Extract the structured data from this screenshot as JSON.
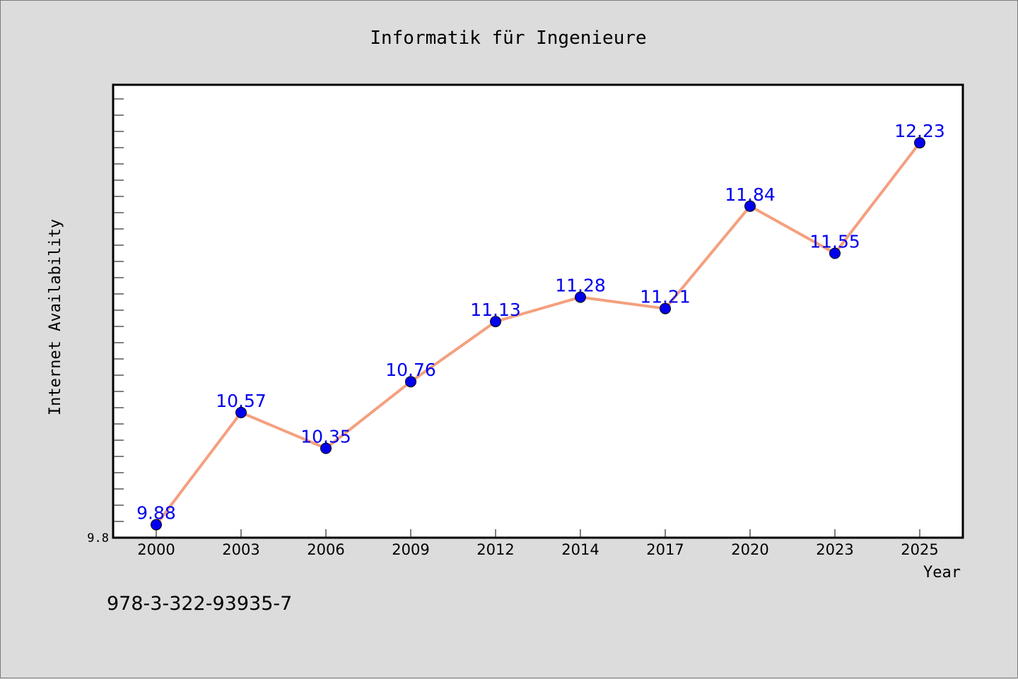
{
  "chart_data": {
    "type": "line",
    "title": "Informatik für Ingenieure",
    "xlabel": "Year",
    "ylabel": "Internet Availability",
    "categories": [
      "2000",
      "2003",
      "2006",
      "2009",
      "2012",
      "2014",
      "2017",
      "2020",
      "2023",
      "2025"
    ],
    "series": [
      {
        "values": [
          9.88,
          10.57,
          10.35,
          10.76,
          11.13,
          11.28,
          11.21,
          11.84,
          11.55,
          12.23
        ],
        "labels": [
          "9.88",
          "10.57",
          "10.35",
          "10.76",
          "11.13",
          "11.28",
          "11.21",
          "11.84",
          "11.55",
          "12.23"
        ]
      }
    ],
    "ylim": [
      9.8,
      12.6
    ],
    "y_tick_label": "9.8",
    "grid": false,
    "line_color": "#f4a07f",
    "marker_color": "#0000ee",
    "label_color": "#0000ee",
    "background_color": "#dcdcdc",
    "plot_background": "#ffffff"
  },
  "footer": {
    "isbn": "978-3-322-93935-7"
  }
}
